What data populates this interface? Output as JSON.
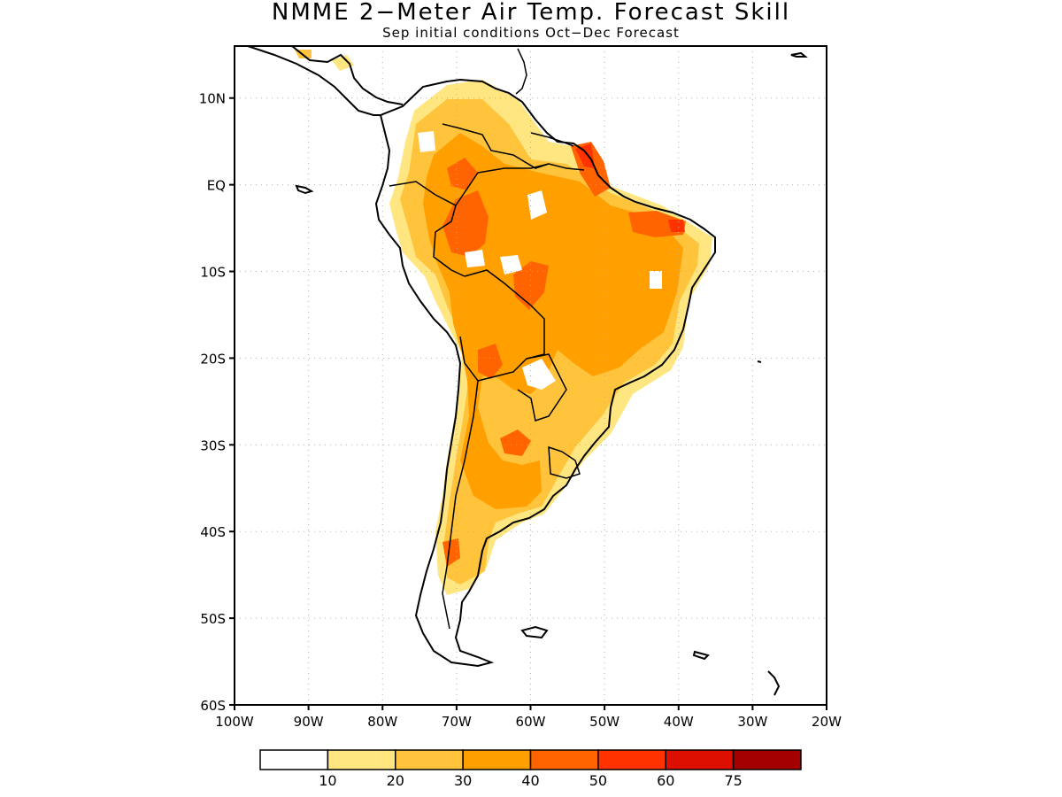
{
  "title": "NMME 2−Meter Air Temp. Forecast Skill",
  "subtitle": "Sep initial conditions  Oct−Dec Forecast",
  "map": {
    "lon_range": [
      -100,
      -20
    ],
    "lat_range": [
      -60,
      16
    ],
    "lat_ticks": [
      {
        "value": 10,
        "label": "10N"
      },
      {
        "value": 0,
        "label": "EQ"
      },
      {
        "value": -10,
        "label": "10S"
      },
      {
        "value": -20,
        "label": "20S"
      },
      {
        "value": -30,
        "label": "30S"
      },
      {
        "value": -40,
        "label": "40S"
      },
      {
        "value": -50,
        "label": "50S"
      },
      {
        "value": -60,
        "label": "60S"
      }
    ],
    "lon_ticks": [
      {
        "value": -100,
        "label": "100W"
      },
      {
        "value": -90,
        "label": "90W"
      },
      {
        "value": -80,
        "label": "80W"
      },
      {
        "value": -70,
        "label": "70W"
      },
      {
        "value": -60,
        "label": "60W"
      },
      {
        "value": -50,
        "label": "50W"
      },
      {
        "value": -40,
        "label": "40W"
      },
      {
        "value": -30,
        "label": "30W"
      },
      {
        "value": -20,
        "label": "20W"
      }
    ],
    "grid": true,
    "grid_style": "dotted"
  },
  "colorbar": {
    "colors": [
      "#ffffff",
      "#ffe680",
      "#ffc33c",
      "#ffa000",
      "#ff6400",
      "#ff3200",
      "#dc0f00",
      "#a50000"
    ],
    "labels": [
      "10",
      "20",
      "30",
      "40",
      "50",
      "60",
      "75"
    ]
  },
  "colors": {
    "coast": "#000000",
    "grid": "#b0b0b0"
  }
}
